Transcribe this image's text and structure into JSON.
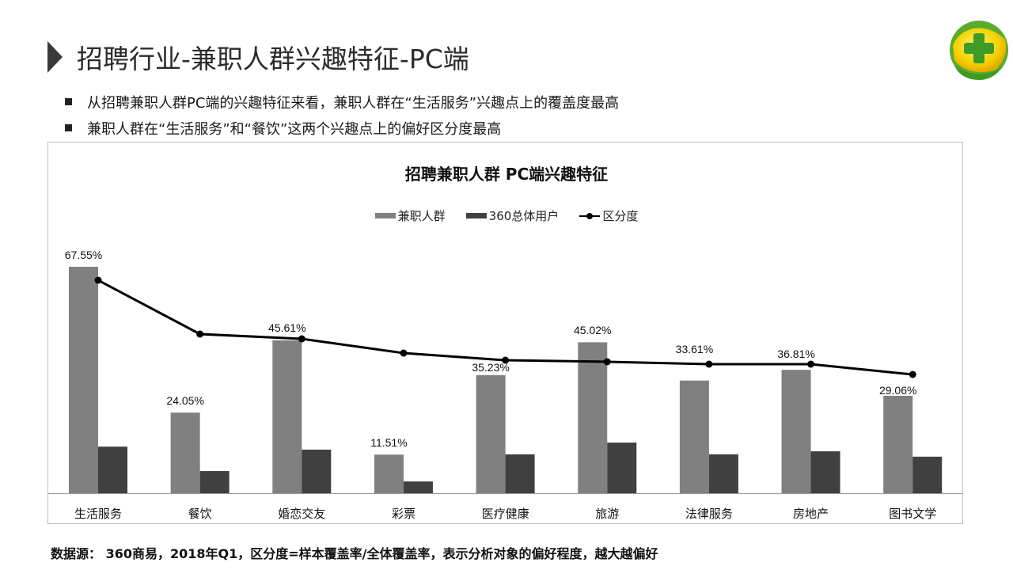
{
  "header": {
    "title": "招聘行业-兼职人群兴趣特征-PC端",
    "bullets": [
      "从招聘兼职人群PC端的兴趣特征来看，兼职人群在“生活服务”兴趣点上的覆盖度最高",
      "兼职人群在“生活服务”和“餐饮”这两个兴趣点上的偏好区分度最高"
    ],
    "logo_icon": "360-logo-plus-icon"
  },
  "footer": {
    "source_text": "数据源： 360商易，2018年Q1，区分度=样本覆盖率/全体覆盖率，表示分析对象的偏好程度，越大越偏好"
  },
  "colors": {
    "series_parttime": "#808080",
    "series_overall": "#404040",
    "series_index": "#000000"
  },
  "chart_data": {
    "type": "bar",
    "title": "招聘兼职人群 PC端兴趣特征",
    "xlabel": "",
    "ylabel": "",
    "grid": false,
    "legend_position": "top",
    "categories": [
      "生活服务",
      "餐饮",
      "婚恋交友",
      "彩票",
      "医疗健康",
      "旅游",
      "法律服务",
      "房地产",
      "图书文学"
    ],
    "series": [
      {
        "name": "兼职人群",
        "type": "bar",
        "values": [
          67.55,
          24.05,
          45.61,
          11.51,
          35.23,
          45.02,
          33.61,
          36.81,
          29.06
        ],
        "labels": [
          "67.55%",
          "24.05%",
          "45.61%",
          "11.51%",
          "35.23%",
          "45.02%",
          "33.61%",
          "36.81%",
          "29.06%"
        ]
      },
      {
        "name": "360总体用户",
        "type": "bar",
        "values": [
          13.9,
          6.6,
          13.0,
          3.5,
          11.6,
          15.1,
          11.6,
          12.5,
          10.9
        ]
      },
      {
        "name": "区分度",
        "type": "line",
        "secondary_axis": true,
        "values": [
          4.9,
          3.6,
          3.5,
          3.3,
          3.0,
          3.0,
          2.9,
          2.9,
          2.7
        ]
      }
    ],
    "legend": [
      "兼职人群",
      "360总体用户",
      "区分度"
    ]
  }
}
